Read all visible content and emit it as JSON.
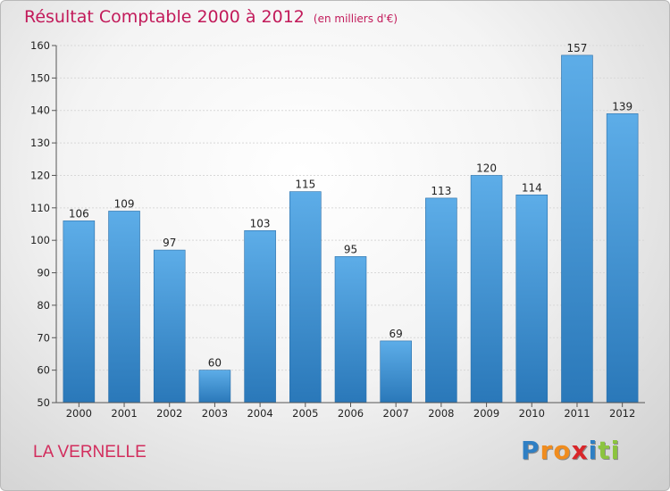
{
  "header": {
    "title": "Résultat Comptable 2000 à 2012",
    "subtitle": "(en milliers d'€)"
  },
  "footer": {
    "commune": "LA VERNELLE",
    "logo_letters": [
      "P",
      "r",
      "o",
      "x",
      "i",
      "t",
      "i"
    ],
    "logo_colors": [
      "#2f7fc4",
      "#f08c1e",
      "#f08c1e",
      "#d9262a",
      "#2f7fc4",
      "#8cc43f",
      "#8cc43f"
    ]
  },
  "colors": {
    "bar_top": "#5dade8",
    "bar_bottom": "#2a78b9",
    "title": "#c21a5a"
  },
  "chart_data": {
    "type": "bar",
    "title": "Résultat Comptable 2000 à 2012",
    "subtitle": "(en milliers d'€)",
    "xlabel": "",
    "ylabel": "",
    "categories": [
      "2000",
      "2001",
      "2002",
      "2003",
      "2004",
      "2005",
      "2006",
      "2007",
      "2008",
      "2009",
      "2010",
      "2011",
      "2012"
    ],
    "values": [
      106,
      109,
      97,
      60,
      103,
      115,
      95,
      69,
      113,
      120,
      114,
      157,
      139
    ],
    "ylim": [
      50,
      160
    ],
    "yticks": [
      50,
      60,
      70,
      80,
      90,
      100,
      110,
      120,
      130,
      140,
      150,
      160
    ],
    "grid": true,
    "legend": "none"
  }
}
